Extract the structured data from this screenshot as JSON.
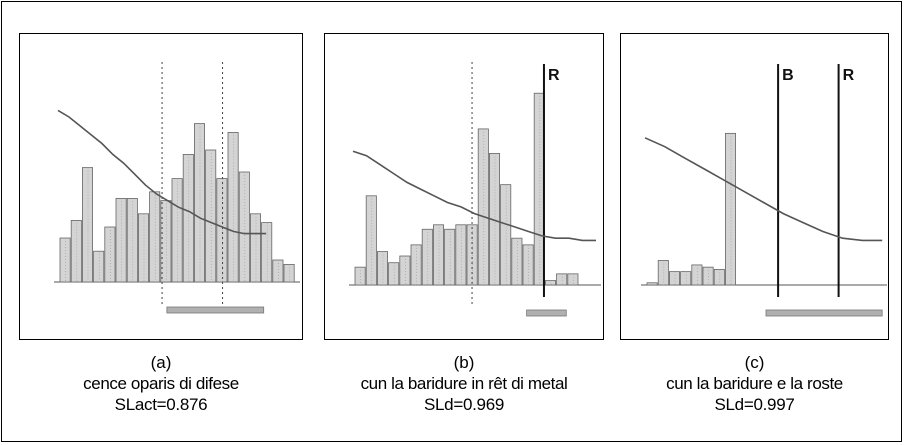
{
  "panels": [
    {
      "letter": "(a)",
      "description": "cence oparis di difese",
      "score": "SLact=0.876",
      "chart_data": {
        "type": "bar",
        "ylim": [
          0,
          1
        ],
        "bars": [
          0.2,
          0.28,
          0.52,
          0.14,
          0.25,
          0.38,
          0.38,
          0.31,
          0.41,
          0.37,
          0.47,
          0.58,
          0.72,
          0.6,
          0.47,
          0.68,
          0.5,
          0.31,
          0.27,
          0.1,
          0.08
        ],
        "line": [
          0.78,
          0.75,
          0.71,
          0.67,
          0.63,
          0.58,
          0.54,
          0.49,
          0.44,
          0.4,
          0.37,
          0.34,
          0.32,
          0.29,
          0.27,
          0.25,
          0.23,
          0.22,
          0.22,
          0.22
        ],
        "line_extent": 0.86,
        "vlines": [],
        "dotted_vlines": [
          0.43,
          0.68
        ],
        "vline_labels": [],
        "bottom_range": [
          0.45,
          0.85
        ]
      }
    },
    {
      "letter": "(b)",
      "description": "cun la baridure in rêt di metal",
      "score": "SLd=0.969",
      "chart_data": {
        "type": "bar",
        "ylim": [
          0,
          1
        ],
        "bars": [
          0.08,
          0.4,
          0.15,
          0.1,
          0.13,
          0.18,
          0.25,
          0.27,
          0.25,
          0.27,
          0.27,
          0.7,
          0.59,
          0.45,
          0.21,
          0.18,
          0.86,
          0.02,
          0.05,
          0.05
        ],
        "line": [
          0.6,
          0.58,
          0.54,
          0.5,
          0.46,
          0.43,
          0.4,
          0.37,
          0.35,
          0.32,
          0.3,
          0.28,
          0.26,
          0.24,
          0.22,
          0.21,
          0.21,
          0.2,
          0.2
        ],
        "line_extent": 0.98,
        "vlines": [
          0.77
        ],
        "dotted_vlines": [
          0.48
        ],
        "vline_labels": [
          "R"
        ],
        "bottom_range": [
          0.7,
          0.86
        ]
      }
    },
    {
      "letter": "(c)",
      "description": "cun la baridure e la roste",
      "score": "SLd=0.997",
      "chart_data": {
        "type": "bar",
        "ylim": [
          0,
          1
        ],
        "bars": [
          0.01,
          0.11,
          0.06,
          0.06,
          0.09,
          0.08,
          0.07,
          0.68
        ],
        "line": [
          0.66,
          0.62,
          0.57,
          0.52,
          0.47,
          0.42,
          0.37,
          0.32,
          0.28,
          0.24,
          0.21,
          0.2,
          0.2
        ],
        "line_extent": 0.98,
        "vlines": [
          0.55,
          0.8
        ],
        "dotted_vlines": [],
        "vline_labels": [
          "B",
          "R"
        ],
        "bottom_range": [
          0.5,
          0.98
        ]
      }
    }
  ]
}
